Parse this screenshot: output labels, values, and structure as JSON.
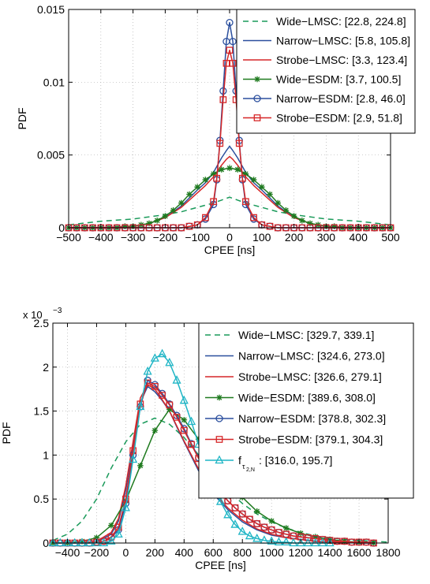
{
  "chart_data": [
    {
      "type": "line",
      "xlabel": "CPEE [ns]",
      "ylabel": "PDF",
      "xlim": [
        -500,
        500
      ],
      "ylim": [
        0,
        0.015
      ],
      "x_ticks": [
        -500,
        -400,
        -300,
        -200,
        -100,
        0,
        100,
        200,
        300,
        400,
        500
      ],
      "x_tick_labels": [
        "−500",
        "−400",
        "−300",
        "−200",
        "−100",
        "0",
        "100",
        "200",
        "300",
        "400",
        "500"
      ],
      "y_ticks": [
        0,
        0.005,
        0.01,
        0.015
      ],
      "y_tick_labels": [
        "0",
        "0.005",
        "0.01",
        "0.015"
      ],
      "y_exponent_label": "",
      "grid": true,
      "legend_position": "top-right",
      "series": [
        {
          "name": "Wide−LMSC: [22.8, 224.8]",
          "color": "#1a9a5a",
          "dash": "7,5",
          "marker": "none",
          "x": [
            -500,
            -400,
            -300,
            -200,
            -150,
            -100,
            -50,
            -25,
            0,
            25,
            50,
            100,
            150,
            200,
            300,
            400,
            500
          ],
          "y": [
            0.0002,
            0.00045,
            0.0006,
            0.0009,
            0.0011,
            0.0014,
            0.0017,
            0.0019,
            0.0021,
            0.0019,
            0.0017,
            0.0014,
            0.0011,
            0.0009,
            0.0006,
            0.00045,
            0.0002
          ]
        },
        {
          "name": "Narrow−LMSC: [5.8, 105.8]",
          "color": "#2b4f9e",
          "dash": "",
          "marker": "none",
          "x": [
            -500,
            -400,
            -300,
            -250,
            -200,
            -150,
            -100,
            -75,
            -50,
            -25,
            -10,
            0,
            10,
            25,
            50,
            75,
            100,
            150,
            200,
            250,
            300,
            400,
            500
          ],
          "y": [
            0,
            0,
            0.0001,
            0.0003,
            0.0007,
            0.0015,
            0.0026,
            0.0031,
            0.0038,
            0.0048,
            0.0053,
            0.0056,
            0.0053,
            0.0048,
            0.0038,
            0.0031,
            0.0026,
            0.0015,
            0.0007,
            0.0003,
            0.0001,
            0,
            0
          ]
        },
        {
          "name": "Strobe−LMSC: [3.3, 123.4]",
          "color": "#d62728",
          "dash": "",
          "marker": "none",
          "x": [
            -500,
            -400,
            -300,
            -250,
            -200,
            -150,
            -100,
            -75,
            -50,
            -25,
            -10,
            0,
            10,
            25,
            50,
            75,
            100,
            150,
            200,
            250,
            300,
            400,
            500
          ],
          "y": [
            0,
            0,
            0.0001,
            0.0003,
            0.0007,
            0.0014,
            0.0024,
            0.0029,
            0.0035,
            0.0043,
            0.0047,
            0.0049,
            0.0047,
            0.0043,
            0.0035,
            0.0029,
            0.0024,
            0.0014,
            0.0007,
            0.0003,
            0.0001,
            0,
            0
          ]
        },
        {
          "name": "Wide−ESDM: [3.7, 100.5]",
          "color": "#1f7a1f",
          "dash": "",
          "marker": "star",
          "x": [
            -500,
            -475,
            -450,
            -425,
            -400,
            -375,
            -350,
            -325,
            -300,
            -275,
            -250,
            -225,
            -200,
            -175,
            -150,
            -125,
            -100,
            -75,
            -50,
            -25,
            0,
            25,
            50,
            75,
            100,
            125,
            150,
            175,
            200,
            225,
            250,
            275,
            300,
            325,
            350,
            375,
            400,
            425,
            450,
            475,
            500
          ],
          "y": [
            0,
            0,
            0,
            0,
            0,
            0,
            0,
            0.0001,
            0.0001,
            0.0002,
            0.0003,
            0.0005,
            0.0008,
            0.0012,
            0.0017,
            0.0023,
            0.0028,
            0.0033,
            0.0037,
            0.004,
            0.0041,
            0.004,
            0.0037,
            0.0033,
            0.0028,
            0.0023,
            0.0017,
            0.0012,
            0.0008,
            0.0005,
            0.0003,
            0.0002,
            0.0001,
            0.0001,
            0,
            0,
            0,
            0,
            0,
            0,
            0
          ]
        },
        {
          "name": "Narrow−ESDM: [2.8, 46.0]",
          "color": "#2b4f9e",
          "dash": "",
          "marker": "circle",
          "x": [
            -500,
            -475,
            -450,
            -425,
            -400,
            -375,
            -350,
            -325,
            -300,
            -275,
            -250,
            -225,
            -200,
            -175,
            -150,
            -125,
            -100,
            -75,
            -50,
            -40,
            -30,
            -20,
            -10,
            0,
            10,
            20,
            30,
            40,
            50,
            75,
            100,
            125,
            150,
            175,
            200,
            225,
            250,
            275,
            300,
            325,
            350,
            375,
            400,
            425,
            450,
            475,
            500
          ],
          "y": [
            0,
            0,
            0,
            0,
            0,
            0,
            0,
            0,
            0,
            0,
            0,
            0,
            0,
            0,
            0,
            0.0001,
            0.0002,
            0.0006,
            0.0016,
            0.0033,
            0.006,
            0.0094,
            0.0128,
            0.0141,
            0.0128,
            0.0094,
            0.006,
            0.0033,
            0.0016,
            0.0006,
            0.0002,
            0.0001,
            0,
            0,
            0,
            0,
            0,
            0,
            0,
            0,
            0,
            0,
            0,
            0,
            0,
            0,
            0
          ]
        },
        {
          "name": "Strobe−ESDM: [2.9, 51.8]",
          "color": "#d62728",
          "dash": "",
          "marker": "square",
          "x": [
            -500,
            -475,
            -450,
            -425,
            -400,
            -375,
            -350,
            -325,
            -300,
            -275,
            -250,
            -225,
            -200,
            -175,
            -150,
            -125,
            -100,
            -75,
            -50,
            -40,
            -30,
            -20,
            -10,
            0,
            10,
            20,
            30,
            40,
            50,
            75,
            100,
            125,
            150,
            175,
            200,
            225,
            250,
            275,
            300,
            325,
            350,
            375,
            400,
            425,
            450,
            475,
            500
          ],
          "y": [
            0,
            0,
            0,
            0,
            0,
            0,
            0,
            0,
            0,
            0,
            0,
            0,
            0,
            0,
            0,
            0.0001,
            0.0002,
            0.0007,
            0.0018,
            0.0034,
            0.0058,
            0.0088,
            0.0113,
            0.0122,
            0.0113,
            0.0088,
            0.0058,
            0.0034,
            0.0018,
            0.0007,
            0.0002,
            0.0001,
            0,
            0,
            0,
            0,
            0,
            0,
            0,
            0,
            0,
            0,
            0,
            0,
            0,
            0,
            0
          ]
        }
      ]
    },
    {
      "type": "line",
      "xlabel": "CPEE [ns]",
      "ylabel": "PDF",
      "xlim": [
        -500,
        1800
      ],
      "ylim": [
        0,
        2.5
      ],
      "x_ticks": [
        -400,
        -200,
        0,
        200,
        400,
        600,
        800,
        1000,
        1200,
        1400,
        1600,
        1800
      ],
      "x_tick_labels": [
        "−400",
        "−200",
        "0",
        "200",
        "400",
        "600",
        "800",
        "1000",
        "1200",
        "1400",
        "1600",
        "1800"
      ],
      "y_ticks": [
        0,
        0.5,
        1,
        1.5,
        2,
        2.5
      ],
      "y_tick_labels": [
        "0",
        "0.5",
        "1",
        "1.5",
        "2",
        "2.5"
      ],
      "y_exponent_label": "x 10",
      "y_exponent_power": "−3",
      "grid": true,
      "legend_position": "top-right",
      "series": [
        {
          "name": "Wide−LMSC: [329.7, 339.1]",
          "color": "#1a9a5a",
          "dash": "7,5",
          "marker": "none",
          "x": [
            -500,
            -400,
            -300,
            -200,
            -100,
            0,
            100,
            200,
            300,
            400,
            500,
            600,
            700,
            800,
            900,
            1000,
            1100,
            1200,
            1300,
            1400,
            1500,
            1600,
            1700,
            1800
          ],
          "y": [
            0.03,
            0.1,
            0.25,
            0.5,
            0.85,
            1.15,
            1.35,
            1.42,
            1.35,
            1.2,
            1.0,
            0.8,
            0.6,
            0.45,
            0.33,
            0.24,
            0.17,
            0.12,
            0.08,
            0.06,
            0.04,
            0.03,
            0.02,
            0.01
          ]
        },
        {
          "name": "Narrow−LMSC: [324.6, 273.0]",
          "color": "#2b4f9e",
          "dash": "",
          "marker": "none",
          "x": [
            -500,
            -400,
            -300,
            -200,
            -100,
            -50,
            0,
            50,
            100,
            150,
            200,
            250,
            300,
            350,
            400,
            500,
            600,
            700,
            800,
            900,
            1000,
            1100,
            1200,
            1300,
            1400,
            1500,
            1600,
            1700
          ],
          "y": [
            0,
            0,
            0,
            0.01,
            0.1,
            0.25,
            0.6,
            1.1,
            1.6,
            1.78,
            1.72,
            1.62,
            1.5,
            1.32,
            1.15,
            0.82,
            0.56,
            0.38,
            0.24,
            0.15,
            0.09,
            0.06,
            0.04,
            0.02,
            0.01,
            0.01,
            0,
            0
          ]
        },
        {
          "name": "Strobe−LMSC: [326.6, 279.1]",
          "color": "#d62728",
          "dash": "",
          "marker": "none",
          "x": [
            -500,
            -400,
            -300,
            -200,
            -100,
            -50,
            0,
            50,
            100,
            150,
            200,
            250,
            300,
            350,
            400,
            500,
            600,
            700,
            800,
            900,
            1000,
            1100,
            1200,
            1300,
            1400,
            1500,
            1600,
            1700
          ],
          "y": [
            0,
            0,
            0,
            0.02,
            0.12,
            0.28,
            0.65,
            1.15,
            1.65,
            1.8,
            1.75,
            1.63,
            1.5,
            1.33,
            1.16,
            0.84,
            0.58,
            0.4,
            0.26,
            0.16,
            0.1,
            0.06,
            0.04,
            0.02,
            0.01,
            0.01,
            0,
            0
          ]
        },
        {
          "name": "Wide−ESDM: [389.6, 308.0]",
          "color": "#1f7a1f",
          "dash": "",
          "marker": "star",
          "x": [
            -500,
            -400,
            -300,
            -200,
            -100,
            0,
            100,
            200,
            300,
            400,
            500,
            600,
            700,
            800,
            900,
            1000,
            1100,
            1200,
            1300,
            1400,
            1500,
            1600,
            1700
          ],
          "y": [
            0,
            0,
            0.02,
            0.06,
            0.2,
            0.48,
            0.88,
            1.28,
            1.52,
            1.4,
            1.18,
            0.96,
            0.72,
            0.52,
            0.36,
            0.25,
            0.17,
            0.11,
            0.07,
            0.04,
            0.02,
            0.01,
            0
          ]
        },
        {
          "name": "Narrow−ESDM: [378.8, 302.3]",
          "color": "#2b4f9e",
          "dash": "",
          "marker": "circle",
          "x": [
            -500,
            -450,
            -400,
            -350,
            -300,
            -250,
            -200,
            -150,
            -100,
            -50,
            0,
            50,
            100,
            150,
            200,
            250,
            300,
            350,
            400,
            450,
            500,
            550,
            600,
            650,
            700,
            750,
            800,
            850,
            900,
            950,
            1000,
            1050,
            1100,
            1150,
            1200,
            1250,
            1300,
            1350,
            1400,
            1450,
            1500,
            1550,
            1600,
            1650,
            1700
          ],
          "y": [
            0,
            0,
            0,
            0,
            0,
            0,
            0.01,
            0.02,
            0.06,
            0.15,
            0.45,
            1.0,
            1.55,
            1.85,
            1.8,
            1.7,
            1.58,
            1.45,
            1.3,
            1.13,
            0.97,
            0.82,
            0.69,
            0.58,
            0.48,
            0.4,
            0.33,
            0.27,
            0.22,
            0.18,
            0.15,
            0.12,
            0.1,
            0.08,
            0.07,
            0.06,
            0.05,
            0.04,
            0.03,
            0.02,
            0.02,
            0.01,
            0.01,
            0.01,
            0
          ]
        },
        {
          "name": "Strobe−ESDM: [379.1, 304.3]",
          "color": "#d62728",
          "dash": "",
          "marker": "square",
          "x": [
            -500,
            -450,
            -400,
            -350,
            -300,
            -250,
            -200,
            -150,
            -100,
            -50,
            0,
            50,
            100,
            150,
            200,
            250,
            300,
            350,
            400,
            450,
            500,
            550,
            600,
            650,
            700,
            750,
            800,
            850,
            900,
            950,
            1000,
            1050,
            1100,
            1150,
            1200,
            1250,
            1300,
            1350,
            1400,
            1450,
            1500,
            1550,
            1600,
            1650,
            1700
          ],
          "y": [
            0,
            0,
            0,
            0,
            0,
            0,
            0.01,
            0.02,
            0.07,
            0.18,
            0.5,
            1.05,
            1.58,
            1.82,
            1.78,
            1.68,
            1.57,
            1.43,
            1.28,
            1.12,
            0.96,
            0.82,
            0.69,
            0.58,
            0.48,
            0.4,
            0.33,
            0.27,
            0.22,
            0.18,
            0.15,
            0.12,
            0.1,
            0.08,
            0.07,
            0.06,
            0.05,
            0.04,
            0.03,
            0.02,
            0.02,
            0.01,
            0.01,
            0.01,
            0
          ]
        },
        {
          "name": "f_{τ2,N}: [316.0, 195.7]",
          "label_main": "f",
          "label_sub": "τ",
          "label_subsub": "2,N",
          "label_rest": ": [316.0, 195.7]",
          "color": "#1fb5c5",
          "dash": "",
          "marker": "triangle",
          "x": [
            -500,
            -450,
            -400,
            -350,
            -300,
            -250,
            -200,
            -150,
            -100,
            -50,
            0,
            50,
            100,
            150,
            200,
            250,
            300,
            350,
            400,
            450,
            500,
            550,
            600,
            650,
            700,
            750,
            800,
            850,
            900,
            950,
            1000,
            1050,
            1100,
            1150,
            1200,
            1250,
            1300,
            1350,
            1400
          ],
          "y": [
            0,
            0,
            0,
            0,
            0,
            0,
            0,
            0,
            0.02,
            0.1,
            0.4,
            0.95,
            1.55,
            1.95,
            2.1,
            2.15,
            2.05,
            1.85,
            1.62,
            1.38,
            1.12,
            0.88,
            0.66,
            0.47,
            0.32,
            0.21,
            0.13,
            0.08,
            0.05,
            0.03,
            0.02,
            0.01,
            0.01,
            0,
            0,
            0,
            0,
            0,
            0
          ]
        }
      ]
    }
  ]
}
